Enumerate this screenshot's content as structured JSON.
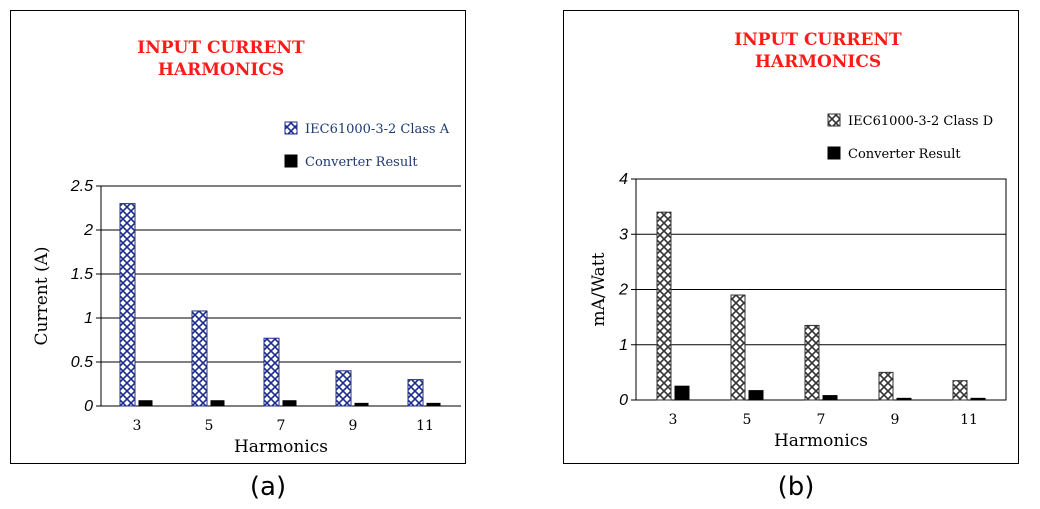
{
  "chart_data": [
    {
      "type": "bar",
      "panel_label": "(a)",
      "title_lines": [
        "INPUT CURRENT",
        "HARMONICS"
      ],
      "xlabel": "Harmonics",
      "ylabel": "Current (A)",
      "categories": [
        "3",
        "5",
        "7",
        "9",
        "11"
      ],
      "yticks": [
        "0",
        "0.5",
        "1",
        "1.5",
        "2",
        "2.5"
      ],
      "ylim": [
        0,
        2.5
      ],
      "grid": true,
      "legend_position": "top-right",
      "series": [
        {
          "name": "IEC61000-3-2 Class A",
          "values": [
            2.3,
            1.08,
            0.77,
            0.4,
            0.3
          ],
          "color": "#1f2d8a",
          "pattern": "crosshatch"
        },
        {
          "name": "Converter Result",
          "values": [
            0.06,
            0.06,
            0.06,
            0.03,
            0.03
          ],
          "color": "#000000",
          "pattern": "solid"
        }
      ],
      "title_color": "#ff1a1a",
      "legend_text_color": "#1f3a6e"
    },
    {
      "type": "bar",
      "panel_label": "(b)",
      "title_lines": [
        "INPUT CURRENT",
        "HARMONICS"
      ],
      "xlabel": "Harmonics",
      "ylabel": "mA/Watt",
      "categories": [
        "3",
        "5",
        "7",
        "9",
        "11"
      ],
      "yticks": [
        "0",
        "1",
        "2",
        "3",
        "4"
      ],
      "ylim": [
        0,
        4
      ],
      "grid": true,
      "legend_position": "top-right",
      "series": [
        {
          "name": "IEC61000-3-2 Class D",
          "values": [
            3.4,
            1.9,
            1.35,
            0.5,
            0.35
          ],
          "color": "#333333",
          "pattern": "crosshatch"
        },
        {
          "name": "Converter Result",
          "values": [
            0.25,
            0.17,
            0.08,
            0.03,
            0.03
          ],
          "color": "#000000",
          "pattern": "solid"
        }
      ],
      "title_color": "#ff1a1a",
      "legend_text_color": "#000000"
    }
  ]
}
